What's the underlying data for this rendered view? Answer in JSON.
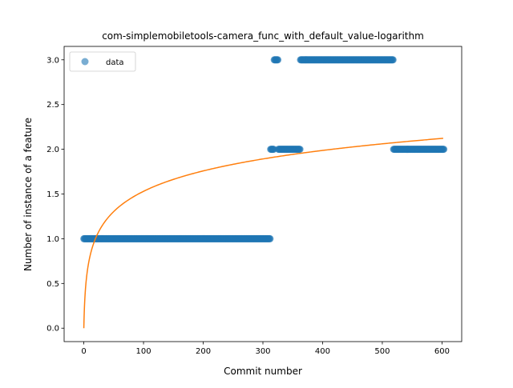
{
  "chart_data": {
    "type": "scatter",
    "title": "com-simplemobiletools-camera_func_with_default_value-logarithm",
    "xlabel": "Commit number",
    "ylabel": "Number of instance of a feature",
    "xlim": [
      -33,
      633
    ],
    "ylim": [
      -0.15,
      3.15
    ],
    "xticks": [
      0,
      100,
      200,
      300,
      400,
      500,
      600
    ],
    "yticks": [
      0.0,
      0.5,
      1.0,
      1.5,
      2.0,
      2.5,
      3.0
    ],
    "xtick_labels": [
      "0",
      "100",
      "200",
      "300",
      "400",
      "500",
      "600"
    ],
    "ytick_labels": [
      "0.0",
      "0.5",
      "1.0",
      "1.5",
      "2.0",
      "2.5",
      "3.0"
    ],
    "legend": {
      "placement": "upper-left",
      "entries": [
        "data"
      ]
    },
    "grid": false,
    "series": [
      {
        "name": "data",
        "kind": "scatter",
        "color": "#1f77b4",
        "segments": [
          {
            "x_start": 0,
            "x_end": 312,
            "y": 1
          },
          {
            "x_start": 313,
            "x_end": 318,
            "y": 2
          },
          {
            "x_start": 319,
            "x_end": 325,
            "y": 3
          },
          {
            "x_start": 326,
            "x_end": 362,
            "y": 2
          },
          {
            "x_start": 363,
            "x_end": 518,
            "y": 3
          },
          {
            "x_start": 519,
            "x_end": 603,
            "y": 2
          }
        ]
      },
      {
        "kind": "line",
        "color": "#ff7f0e",
        "model": "y = a * ln(x + 1)",
        "a": 0.3315,
        "x_range": [
          0,
          603
        ]
      }
    ]
  }
}
